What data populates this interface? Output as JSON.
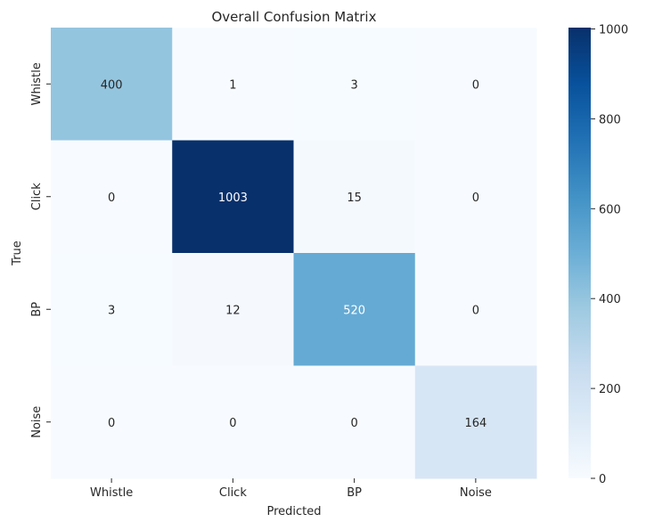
{
  "chart_data": {
    "type": "heatmap",
    "title": "Overall Confusion Matrix",
    "xlabel": "Predicted",
    "ylabel": "True",
    "x_categories": [
      "Whistle",
      "Click",
      "BP",
      "Noise"
    ],
    "y_categories": [
      "Whistle",
      "Click",
      "BP",
      "Noise"
    ],
    "values": [
      [
        400,
        1,
        3,
        0
      ],
      [
        0,
        1003,
        15,
        0
      ],
      [
        3,
        12,
        520,
        0
      ],
      [
        0,
        0,
        0,
        164
      ]
    ],
    "colorbar": {
      "min": 0,
      "max": 1003,
      "ticks": [
        0,
        200,
        400,
        600,
        800,
        1000
      ],
      "colormap": "Blues"
    },
    "colors": {
      "low": "#f7fbff",
      "high": "#08306b",
      "text_dark": "#262626",
      "text_light": "#ffffff"
    }
  }
}
